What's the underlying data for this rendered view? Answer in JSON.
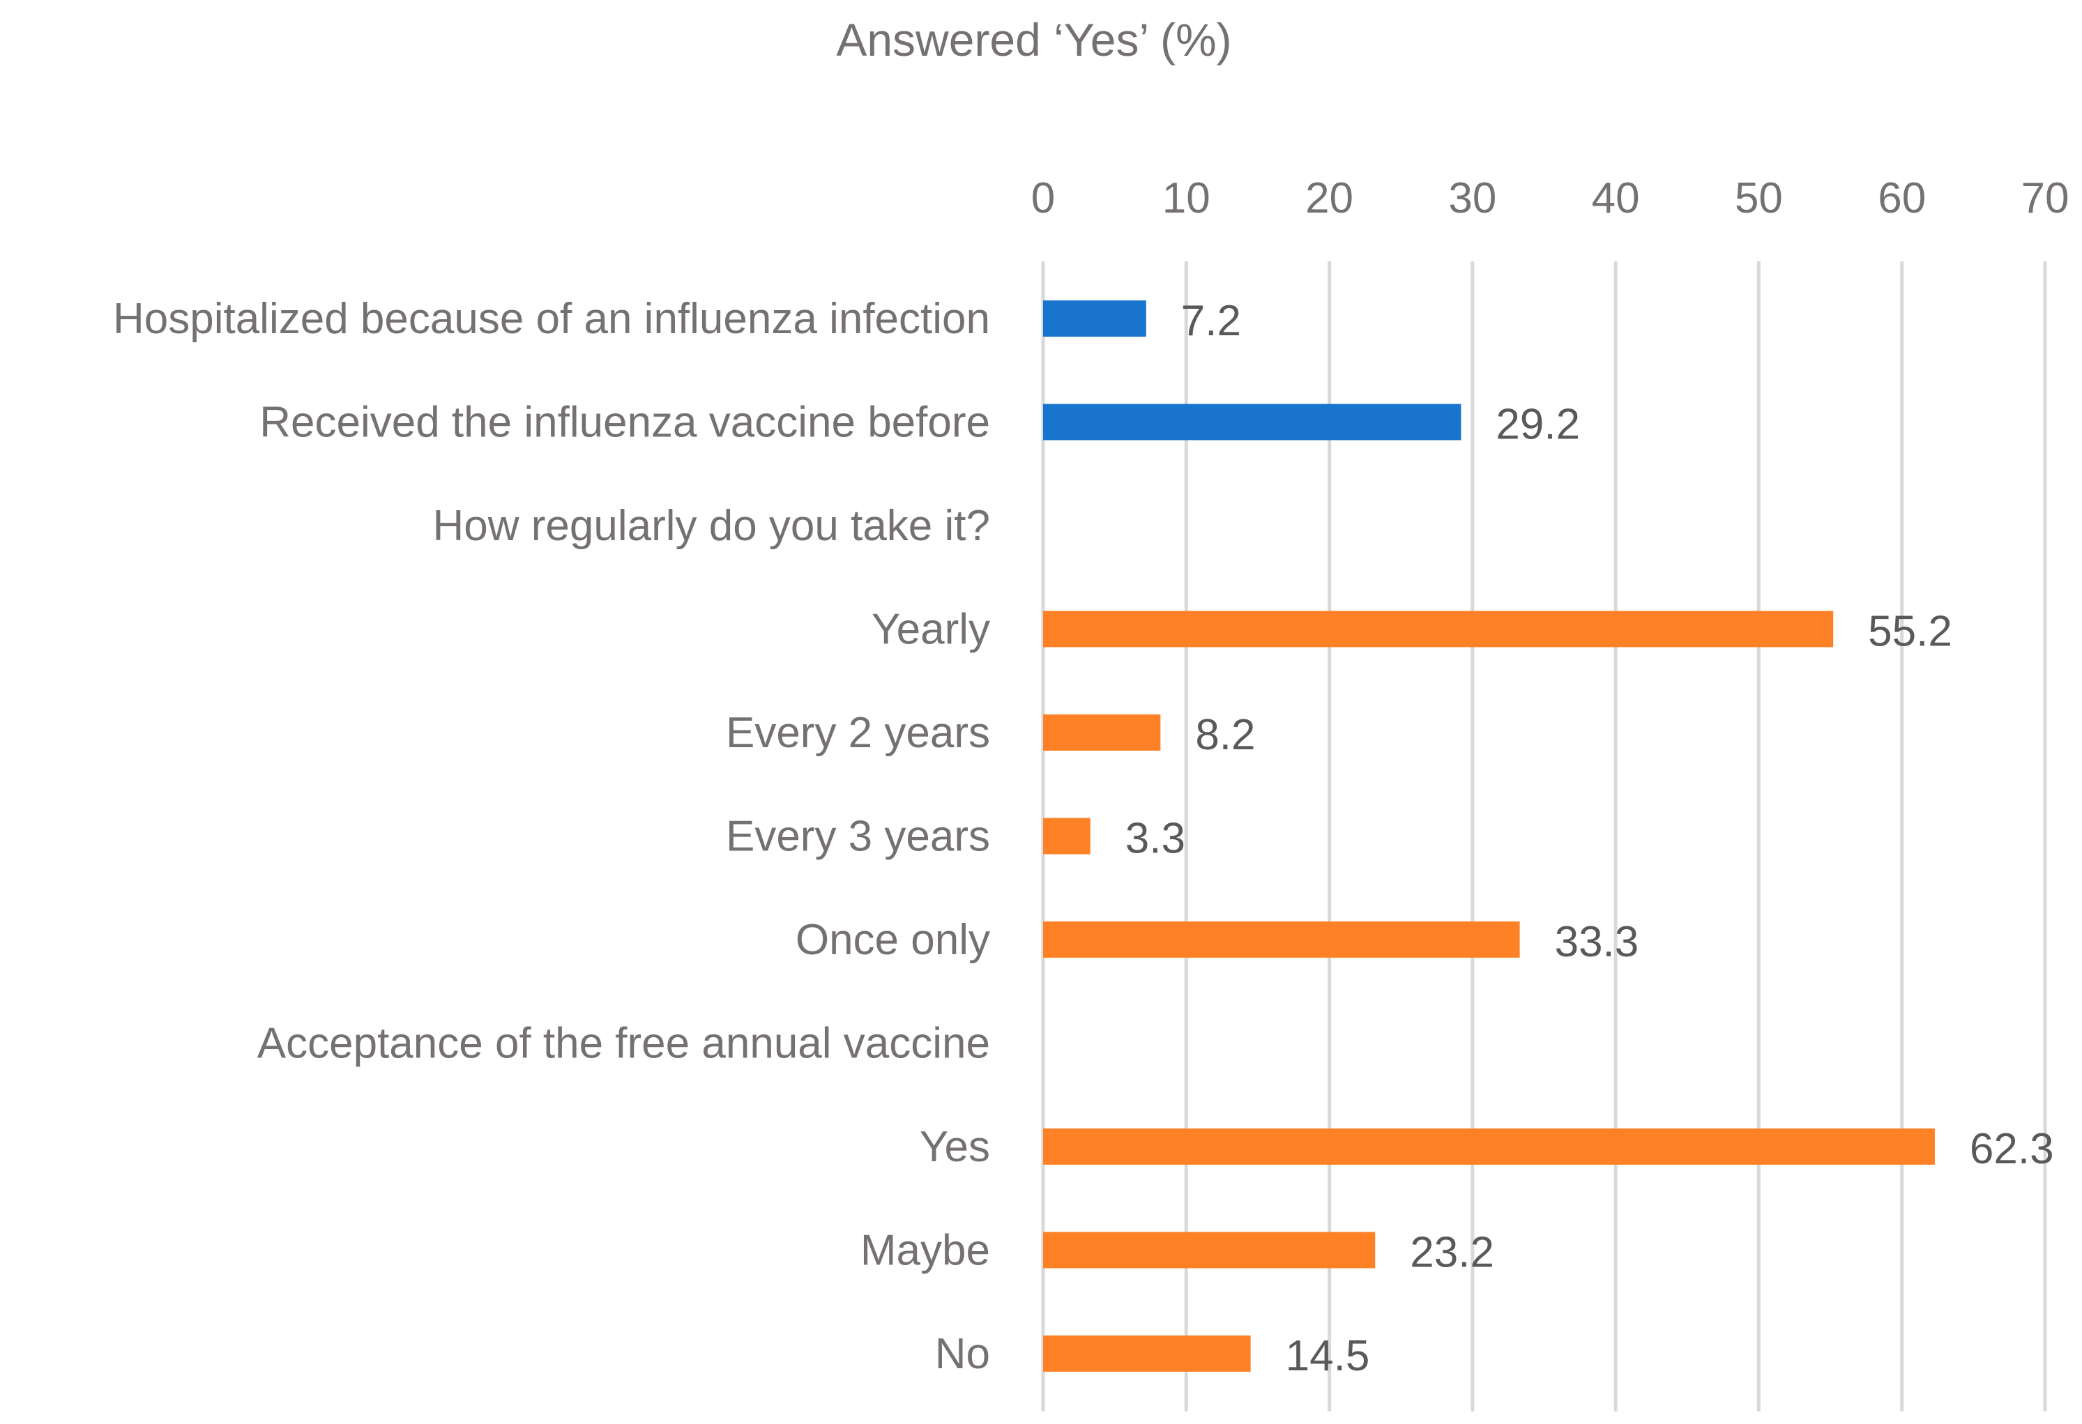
{
  "chart_data": {
    "type": "bar",
    "orientation": "horizontal",
    "title": "Answered ‘Yes’ (%)",
    "xlabel": "",
    "ylabel": "",
    "xlim": [
      0,
      70
    ],
    "ticks": [
      "0",
      "10",
      "20",
      "30",
      "40",
      "50",
      "60",
      "70"
    ],
    "tick_values": [
      0,
      10,
      20,
      30,
      40,
      50,
      60,
      70
    ],
    "grid": true,
    "colors": {
      "primary": "#1874cd",
      "secondary": "#ff8125",
      "grid": "#d9d9d9",
      "text": "#767171",
      "label": "#595959"
    },
    "categories": [
      {
        "label": "Hospitalized because of an influenza infection",
        "value": 7.2,
        "display": "7.2",
        "group": "primary"
      },
      {
        "label": "Received the influenza vaccine before",
        "value": 29.2,
        "display": "29.2",
        "group": "primary"
      },
      {
        "label": "How regularly do you take it?",
        "value": null,
        "display": "",
        "group": "heading"
      },
      {
        "label": "Yearly",
        "value": 55.2,
        "display": "55.2",
        "group": "secondary"
      },
      {
        "label": "Every 2 years",
        "value": 8.2,
        "display": "8.2",
        "group": "secondary"
      },
      {
        "label": "Every 3 years",
        "value": 3.3,
        "display": "3.3",
        "group": "secondary"
      },
      {
        "label": "Once only",
        "value": 33.3,
        "display": "33.3",
        "group": "secondary"
      },
      {
        "label": "Acceptance of the free annual vaccine",
        "value": null,
        "display": "",
        "group": "heading"
      },
      {
        "label": "Yes",
        "value": 62.3,
        "display": "62.3",
        "group": "secondary"
      },
      {
        "label": "Maybe",
        "value": 23.2,
        "display": "23.2",
        "group": "secondary"
      },
      {
        "label": "No",
        "value": 14.5,
        "display": "14.5",
        "group": "secondary"
      }
    ]
  }
}
